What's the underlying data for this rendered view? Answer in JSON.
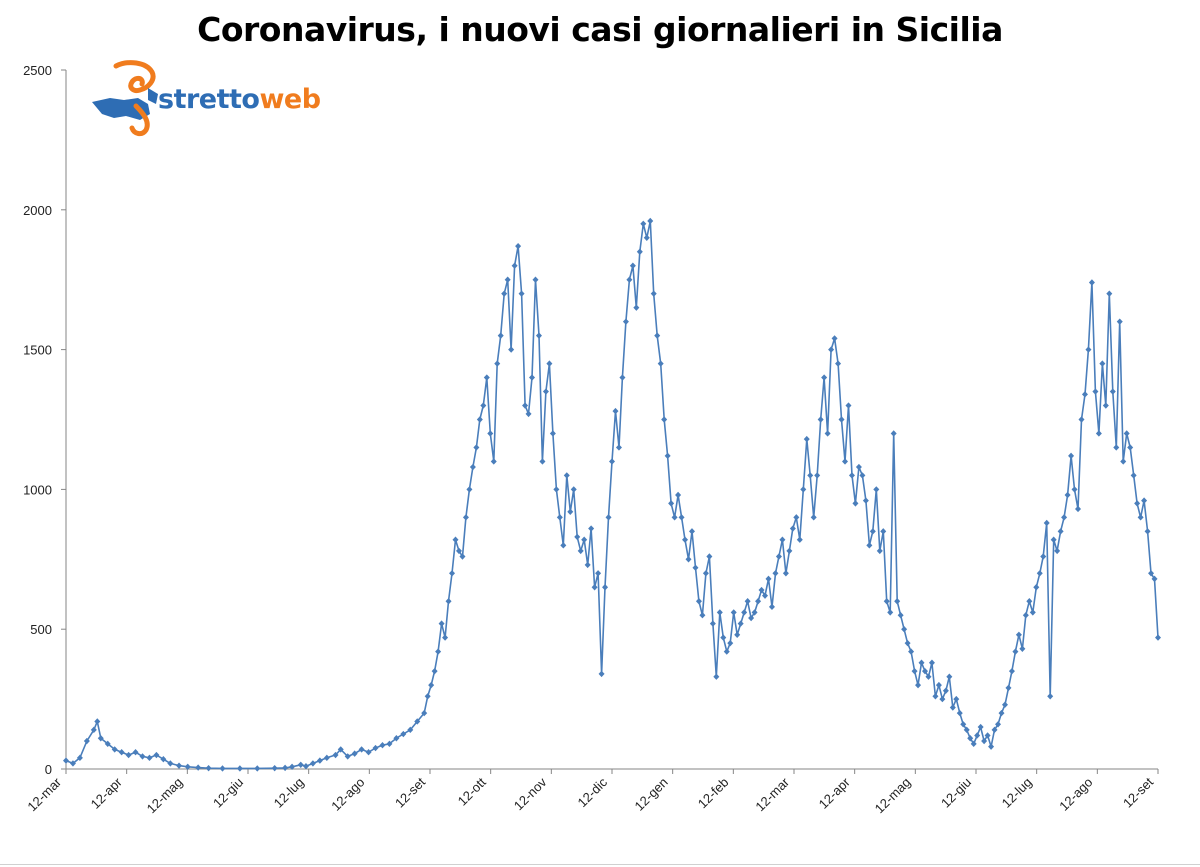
{
  "chart_data": {
    "type": "line",
    "title": "Coronavirus, i nuovi casi giornalieri in Sicilia",
    "xlabel": "",
    "ylabel": "",
    "ylim": [
      0,
      2500
    ],
    "yticks": [
      0,
      500,
      1000,
      1500,
      2000,
      2500
    ],
    "x_tick_labels": [
      "12-mar",
      "12-apr",
      "12-mag",
      "12-giu",
      "12-lug",
      "12-ago",
      "12-set",
      "12-ott",
      "12-nov",
      "12-dic",
      "12-gen",
      "12-feb",
      "12-mar",
      "12-apr",
      "12-mag",
      "12-giu",
      "12-lug",
      "12-ago",
      "12-set"
    ],
    "grid": false,
    "legend": "none",
    "series": [
      {
        "color": "#4a7ebb",
        "keypoints": [
          [
            0,
            30
          ],
          [
            4,
            20
          ],
          [
            8,
            40
          ],
          [
            12,
            100
          ],
          [
            16,
            140
          ],
          [
            18,
            170
          ],
          [
            20,
            110
          ],
          [
            24,
            90
          ],
          [
            28,
            70
          ],
          [
            32,
            60
          ],
          [
            36,
            50
          ],
          [
            40,
            60
          ],
          [
            44,
            45
          ],
          [
            48,
            40
          ],
          [
            52,
            50
          ],
          [
            56,
            35
          ],
          [
            60,
            20
          ],
          [
            65,
            12
          ],
          [
            70,
            8
          ],
          [
            76,
            5
          ],
          [
            82,
            3
          ],
          [
            90,
            2
          ],
          [
            100,
            2
          ],
          [
            110,
            2
          ],
          [
            120,
            3
          ],
          [
            126,
            4
          ],
          [
            130,
            8
          ],
          [
            135,
            15
          ],
          [
            138,
            10
          ],
          [
            142,
            20
          ],
          [
            146,
            30
          ],
          [
            150,
            40
          ],
          [
            155,
            50
          ],
          [
            158,
            70
          ],
          [
            162,
            45
          ],
          [
            166,
            55
          ],
          [
            170,
            70
          ],
          [
            174,
            60
          ],
          [
            178,
            75
          ],
          [
            182,
            85
          ],
          [
            186,
            90
          ],
          [
            190,
            110
          ],
          [
            194,
            125
          ],
          [
            198,
            140
          ],
          [
            202,
            170
          ],
          [
            206,
            200
          ],
          [
            208,
            260
          ],
          [
            210,
            300
          ],
          [
            212,
            350
          ],
          [
            214,
            420
          ],
          [
            216,
            520
          ],
          [
            218,
            470
          ],
          [
            220,
            600
          ],
          [
            222,
            700
          ],
          [
            224,
            820
          ],
          [
            226,
            780
          ],
          [
            228,
            760
          ],
          [
            230,
            900
          ],
          [
            232,
            1000
          ],
          [
            234,
            1080
          ],
          [
            236,
            1150
          ],
          [
            238,
            1250
          ],
          [
            240,
            1300
          ],
          [
            242,
            1400
          ],
          [
            244,
            1200
          ],
          [
            246,
            1100
          ],
          [
            248,
            1450
          ],
          [
            250,
            1550
          ],
          [
            252,
            1700
          ],
          [
            254,
            1750
          ],
          [
            256,
            1500
          ],
          [
            258,
            1800
          ],
          [
            260,
            1870
          ],
          [
            262,
            1700
          ],
          [
            264,
            1300
          ],
          [
            266,
            1270
          ],
          [
            268,
            1400
          ],
          [
            270,
            1750
          ],
          [
            272,
            1550
          ],
          [
            274,
            1100
          ],
          [
            276,
            1350
          ],
          [
            278,
            1450
          ],
          [
            280,
            1200
          ],
          [
            282,
            1000
          ],
          [
            284,
            900
          ],
          [
            286,
            800
          ],
          [
            288,
            1050
          ],
          [
            290,
            920
          ],
          [
            292,
            1000
          ],
          [
            294,
            830
          ],
          [
            296,
            780
          ],
          [
            298,
            820
          ],
          [
            300,
            730
          ],
          [
            302,
            860
          ],
          [
            304,
            650
          ],
          [
            306,
            700
          ],
          [
            308,
            340
          ],
          [
            310,
            650
          ],
          [
            312,
            900
          ],
          [
            314,
            1100
          ],
          [
            316,
            1280
          ],
          [
            318,
            1150
          ],
          [
            320,
            1400
          ],
          [
            322,
            1600
          ],
          [
            324,
            1750
          ],
          [
            326,
            1800
          ],
          [
            328,
            1650
          ],
          [
            330,
            1850
          ],
          [
            332,
            1950
          ],
          [
            334,
            1900
          ],
          [
            336,
            1960
          ],
          [
            338,
            1700
          ],
          [
            340,
            1550
          ],
          [
            342,
            1450
          ],
          [
            344,
            1250
          ],
          [
            346,
            1120
          ],
          [
            348,
            950
          ],
          [
            350,
            900
          ],
          [
            352,
            980
          ],
          [
            354,
            900
          ],
          [
            356,
            820
          ],
          [
            358,
            750
          ],
          [
            360,
            850
          ],
          [
            362,
            720
          ],
          [
            364,
            600
          ],
          [
            366,
            550
          ],
          [
            368,
            700
          ],
          [
            370,
            760
          ],
          [
            372,
            520
          ],
          [
            374,
            330
          ],
          [
            376,
            560
          ],
          [
            378,
            470
          ],
          [
            380,
            420
          ],
          [
            382,
            450
          ],
          [
            384,
            560
          ],
          [
            386,
            480
          ],
          [
            388,
            520
          ],
          [
            390,
            560
          ],
          [
            392,
            600
          ],
          [
            394,
            540
          ],
          [
            396,
            560
          ],
          [
            398,
            600
          ],
          [
            400,
            640
          ],
          [
            402,
            620
          ],
          [
            404,
            680
          ],
          [
            406,
            580
          ],
          [
            408,
            700
          ],
          [
            410,
            760
          ],
          [
            412,
            820
          ],
          [
            414,
            700
          ],
          [
            416,
            780
          ],
          [
            418,
            860
          ],
          [
            420,
            900
          ],
          [
            422,
            820
          ],
          [
            424,
            1000
          ],
          [
            426,
            1180
          ],
          [
            428,
            1050
          ],
          [
            430,
            900
          ],
          [
            432,
            1050
          ],
          [
            434,
            1250
          ],
          [
            436,
            1400
          ],
          [
            438,
            1200
          ],
          [
            440,
            1500
          ],
          [
            442,
            1540
          ],
          [
            444,
            1450
          ],
          [
            446,
            1250
          ],
          [
            448,
            1100
          ],
          [
            450,
            1300
          ],
          [
            452,
            1050
          ],
          [
            454,
            950
          ],
          [
            456,
            1080
          ],
          [
            458,
            1050
          ],
          [
            460,
            960
          ],
          [
            462,
            800
          ],
          [
            464,
            850
          ],
          [
            466,
            1000
          ],
          [
            468,
            780
          ],
          [
            470,
            850
          ],
          [
            472,
            600
          ],
          [
            474,
            560
          ],
          [
            476,
            1200
          ],
          [
            478,
            600
          ],
          [
            480,
            550
          ],
          [
            482,
            500
          ],
          [
            484,
            450
          ],
          [
            486,
            420
          ],
          [
            488,
            350
          ],
          [
            490,
            300
          ],
          [
            492,
            380
          ],
          [
            494,
            350
          ],
          [
            496,
            330
          ],
          [
            498,
            380
          ],
          [
            500,
            260
          ],
          [
            502,
            300
          ],
          [
            504,
            250
          ],
          [
            506,
            280
          ],
          [
            508,
            330
          ],
          [
            510,
            220
          ],
          [
            512,
            250
          ],
          [
            514,
            200
          ],
          [
            516,
            160
          ],
          [
            518,
            140
          ],
          [
            520,
            110
          ],
          [
            522,
            90
          ],
          [
            524,
            120
          ],
          [
            526,
            150
          ],
          [
            528,
            100
          ],
          [
            530,
            120
          ],
          [
            532,
            80
          ],
          [
            534,
            140
          ],
          [
            536,
            160
          ],
          [
            538,
            200
          ],
          [
            540,
            230
          ],
          [
            542,
            290
          ],
          [
            544,
            350
          ],
          [
            546,
            420
          ],
          [
            548,
            480
          ],
          [
            550,
            430
          ],
          [
            552,
            550
          ],
          [
            554,
            600
          ],
          [
            556,
            560
          ],
          [
            558,
            650
          ],
          [
            560,
            700
          ],
          [
            562,
            760
          ],
          [
            564,
            880
          ],
          [
            566,
            260
          ],
          [
            568,
            820
          ],
          [
            570,
            780
          ],
          [
            572,
            850
          ],
          [
            574,
            900
          ],
          [
            576,
            980
          ],
          [
            578,
            1120
          ],
          [
            580,
            1000
          ],
          [
            582,
            930
          ],
          [
            584,
            1250
          ],
          [
            586,
            1340
          ],
          [
            588,
            1500
          ],
          [
            590,
            1740
          ],
          [
            592,
            1350
          ],
          [
            594,
            1200
          ],
          [
            596,
            1450
          ],
          [
            598,
            1300
          ],
          [
            600,
            1700
          ],
          [
            602,
            1350
          ],
          [
            604,
            1150
          ],
          [
            606,
            1600
          ],
          [
            608,
            1100
          ],
          [
            610,
            1200
          ],
          [
            612,
            1150
          ],
          [
            614,
            1050
          ],
          [
            616,
            950
          ],
          [
            618,
            900
          ],
          [
            620,
            960
          ],
          [
            622,
            850
          ],
          [
            624,
            700
          ],
          [
            626,
            680
          ],
          [
            628,
            470
          ]
        ]
      }
    ]
  },
  "logo": {
    "text_part1": "stretto",
    "text_part2": "web"
  }
}
